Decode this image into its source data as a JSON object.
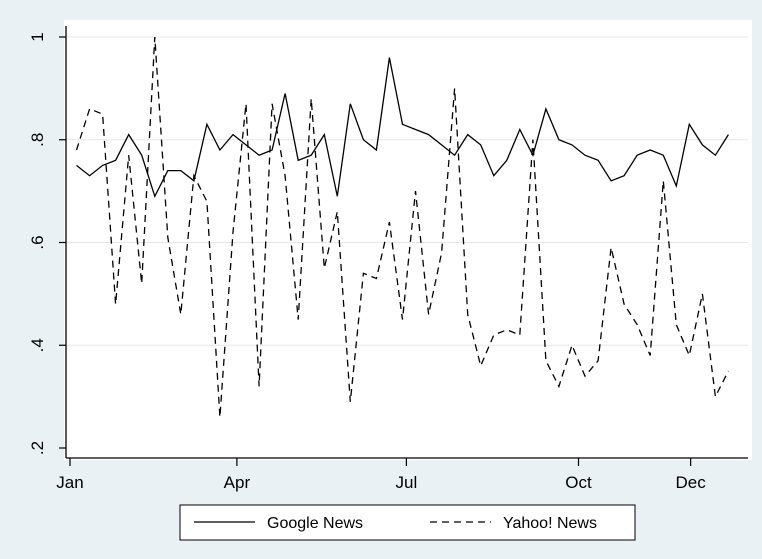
{
  "chart_data": {
    "type": "line",
    "title": "",
    "xlabel": "",
    "ylabel": "",
    "ylim": [
      0.2,
      1.0
    ],
    "yticks": [
      {
        "value": 0.2,
        "label": ".2"
      },
      {
        "value": 0.4,
        "label": ".4"
      },
      {
        "value": 0.6,
        "label": ".6"
      },
      {
        "value": 0.8,
        "label": ".8"
      },
      {
        "value": 1.0,
        "label": "1"
      }
    ],
    "xlim": [
      0,
      52
    ],
    "xticks": [
      {
        "value": 0,
        "label": "Jan"
      },
      {
        "value": 12.8,
        "label": "Apr"
      },
      {
        "value": 25.8,
        "label": "Jul"
      },
      {
        "value": 39,
        "label": "Oct"
      },
      {
        "value": 47.6,
        "label": "Dec"
      }
    ],
    "grid": "horizontal",
    "legend_position": "bottom",
    "x": [
      0.5,
      1.5,
      2.5,
      3.5,
      4.5,
      5.5,
      6.5,
      7.5,
      8.5,
      9.5,
      10.5,
      11.5,
      12.5,
      13.5,
      14.5,
      15.5,
      16.5,
      17.5,
      18.5,
      19.5,
      20.5,
      21.5,
      22.5,
      23.5,
      24.5,
      25.5,
      26.5,
      27.5,
      28.5,
      29.5,
      30.5,
      31.5,
      32.5,
      33.5,
      34.5,
      35.5,
      36.5,
      37.5,
      38.5,
      39.5,
      40.5,
      41.5,
      42.5,
      43.5,
      44.5,
      45.5,
      46.5,
      47.5,
      48.5,
      49.5,
      50.5
    ],
    "series": [
      {
        "name": "Google News",
        "dash": "solid",
        "values": [
          0.75,
          0.73,
          0.75,
          0.76,
          0.81,
          0.77,
          0.69,
          0.74,
          0.74,
          0.72,
          0.83,
          0.78,
          0.81,
          0.79,
          0.77,
          0.78,
          0.89,
          0.76,
          0.77,
          0.81,
          0.69,
          0.87,
          0.8,
          0.78,
          0.96,
          0.83,
          0.82,
          0.81,
          0.79,
          0.77,
          0.81,
          0.79,
          0.73,
          0.76,
          0.82,
          0.77,
          0.86,
          0.8,
          0.79,
          0.77,
          0.76,
          0.72,
          0.73,
          0.77,
          0.78,
          0.77,
          0.71,
          0.83,
          0.79,
          0.77,
          0.81
        ]
      },
      {
        "name": "Yahoo! News",
        "dash": "dashed",
        "values": [
          0.78,
          0.86,
          0.85,
          0.48,
          0.77,
          0.52,
          1.0,
          0.61,
          0.46,
          0.73,
          0.68,
          0.26,
          0.62,
          0.87,
          0.32,
          0.87,
          0.73,
          0.45,
          0.88,
          0.55,
          0.66,
          0.29,
          0.54,
          0.53,
          0.64,
          0.45,
          0.7,
          0.46,
          0.58,
          0.9,
          0.46,
          0.36,
          0.42,
          0.43,
          0.42,
          0.8,
          0.37,
          0.32,
          0.4,
          0.34,
          0.37,
          0.59,
          0.48,
          0.44,
          0.38,
          0.72,
          0.44,
          0.38,
          0.5,
          0.3,
          0.35
        ]
      }
    ]
  }
}
